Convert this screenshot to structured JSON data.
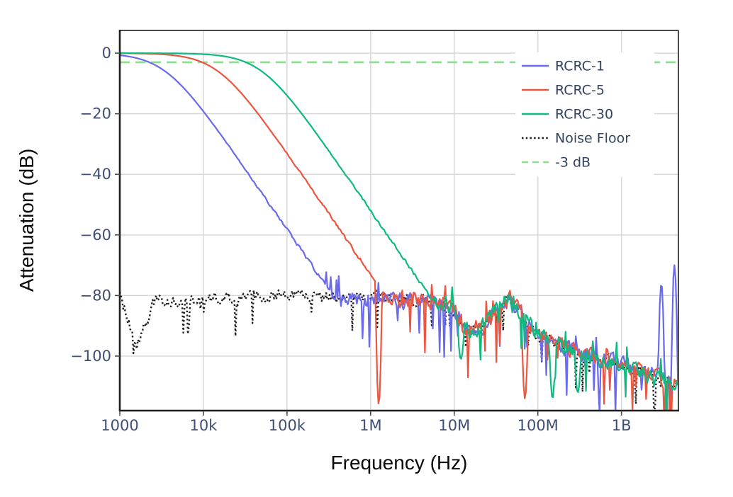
{
  "chart_data": {
    "type": "line",
    "title": "",
    "xlabel": "Frequency (Hz)",
    "ylabel": "Attenuation (dB)",
    "x_scale": "log",
    "grid": true,
    "xlim": [
      1000,
      4800000000
    ],
    "ylim": [
      -118,
      7.5
    ],
    "x_ticks": [
      {
        "value": 1000,
        "label": "1000"
      },
      {
        "value": 10000,
        "label": "10k"
      },
      {
        "value": 100000,
        "label": "100k"
      },
      {
        "value": 1000000,
        "label": "1M"
      },
      {
        "value": 10000000,
        "label": "10M"
      },
      {
        "value": 100000000,
        "label": "100M"
      },
      {
        "value": 1000000000,
        "label": "1B"
      }
    ],
    "y_ticks": [
      {
        "value": 0,
        "label": "0"
      },
      {
        "value": -20,
        "label": "−20"
      },
      {
        "value": -40,
        "label": "−40"
      },
      {
        "value": -60,
        "label": "−60"
      },
      {
        "value": -80,
        "label": "−80"
      },
      {
        "value": -100,
        "label": "−100"
      }
    ],
    "series": [
      {
        "name": "RCRC-1",
        "color": "#6a6aea",
        "line_style": "solid",
        "model": {
          "kind": "lowpass_2pole",
          "cutoff_hz": 3500,
          "f_minus3db_hz": 2250,
          "rolloff_db_per_decade": 40
        },
        "points": [
          [
            1000,
            -1
          ],
          [
            2250,
            -3
          ],
          [
            3500,
            -6
          ],
          [
            10500,
            -20
          ],
          [
            35000,
            -40
          ],
          [
            110000,
            -59
          ],
          [
            350000,
            -79
          ],
          [
            1000000,
            -82
          ],
          [
            10000000,
            -88
          ],
          [
            100000000,
            -95
          ],
          [
            1000000000,
            -102
          ],
          [
            4500000000,
            -108
          ]
        ],
        "spikes": [
          {
            "f": 3000000000,
            "db": -76
          },
          {
            "f": 4300000000,
            "db": -70
          }
        ]
      },
      {
        "name": "RCRC-5",
        "color": "#ec5540",
        "line_style": "solid",
        "model": {
          "kind": "lowpass_2pole",
          "cutoff_hz": 15000,
          "f_minus3db_hz": 9600,
          "rolloff_db_per_decade": 40
        },
        "points": [
          [
            1000,
            -0.1
          ],
          [
            9600,
            -3
          ],
          [
            15000,
            -6
          ],
          [
            45000,
            -20
          ],
          [
            150000,
            -40
          ],
          [
            470000,
            -59
          ],
          [
            1500000,
            -79
          ],
          [
            10000000,
            -88
          ],
          [
            100000000,
            -95
          ],
          [
            1000000000,
            -102
          ],
          [
            4500000000,
            -108
          ]
        ],
        "spikes": [
          {
            "f": 1250000,
            "db": -116
          },
          {
            "f": 70000000,
            "db": -114
          }
        ]
      },
      {
        "name": "RCRC-30",
        "color": "#10b981",
        "line_style": "solid",
        "model": {
          "kind": "lowpass_2pole",
          "cutoff_hz": 50000,
          "f_minus3db_hz": 32000,
          "rolloff_db_per_decade": 40
        },
        "points": [
          [
            1000,
            0
          ],
          [
            32000,
            -3
          ],
          [
            50000,
            -6
          ],
          [
            150000,
            -20
          ],
          [
            500000,
            -40
          ],
          [
            1550000,
            -59
          ],
          [
            5000000,
            -79
          ],
          [
            12000000,
            -96
          ],
          [
            100000000,
            -97
          ],
          [
            1000000000,
            -103
          ],
          [
            4500000000,
            -109
          ]
        ],
        "spikes": [
          {
            "f": 12000000,
            "db": -101
          },
          {
            "f": 150000000,
            "db": -114
          },
          {
            "f": 300000000,
            "db": -112
          }
        ]
      },
      {
        "name": "Noise Floor",
        "color": "#1f1f1f",
        "line_style": "dotted",
        "model": {
          "kind": "noise"
        },
        "points": [
          [
            1000,
            -80
          ],
          [
            1600,
            -96
          ],
          [
            2600,
            -82
          ],
          [
            10000,
            -81
          ],
          [
            100000,
            -80
          ],
          [
            1000000,
            -81
          ],
          [
            8000000,
            -82
          ],
          [
            14000000,
            -91
          ],
          [
            22000000,
            -90
          ],
          [
            45000000,
            -80
          ],
          [
            70000000,
            -88
          ],
          [
            100000000,
            -93
          ],
          [
            300000000,
            -99
          ],
          [
            1000000000,
            -103
          ],
          [
            4500000000,
            -109
          ]
        ],
        "spikes": []
      }
    ],
    "reference_lines": [
      {
        "name": "-3 dB",
        "value_db": -3,
        "color": "#8ce08c",
        "line_style": "dashed"
      }
    ],
    "legend": {
      "position": "top-right",
      "items": [
        {
          "label": "RCRC-1",
          "color": "#6a6aea",
          "style": "solid"
        },
        {
          "label": "RCRC-5",
          "color": "#ec5540",
          "style": "solid"
        },
        {
          "label": "RCRC-30",
          "color": "#10b981",
          "style": "solid"
        },
        {
          "label": "Noise Floor",
          "color": "#1f1f1f",
          "style": "dotted"
        },
        {
          "label": "-3 dB",
          "color": "#8ce08c",
          "style": "dashed"
        }
      ]
    },
    "style_colors": {
      "tick_label": "#3e4e74",
      "legend_text": "#33435f",
      "grid": "#d8d8d8",
      "spine_dark": "#1f1f1f",
      "spine_light": "#4a4a4a",
      "background": "#ffffff"
    }
  }
}
